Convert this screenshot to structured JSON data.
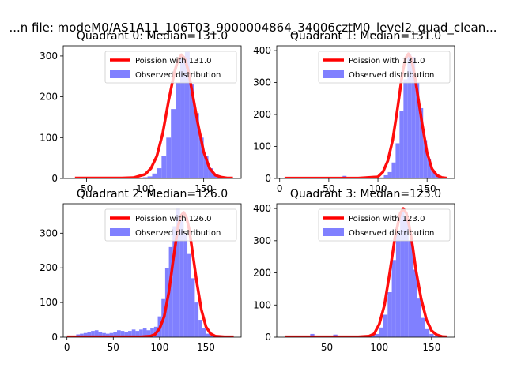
{
  "suptitle": "...n file: modeM0/AS1A11_106T03_9000004864_34006cztM0_level2_quad_clean...",
  "colors": {
    "bar": "#8080ff",
    "line": "#ff0000",
    "axis": "#000000"
  },
  "chart_data": [
    {
      "type": "histogram",
      "title": "Quadrant 0: Median=131.0",
      "xlim": [
        30,
        182
      ],
      "ylim": [
        0,
        325
      ],
      "xticks": [
        50,
        100,
        150
      ],
      "yticks": [
        0,
        100,
        200,
        300
      ],
      "bin_width": 4,
      "bins_x": [
        86,
        90,
        94,
        98,
        102,
        106,
        110,
        114,
        118,
        122,
        126,
        130,
        134,
        138,
        142,
        146,
        150,
        154,
        158,
        162,
        166,
        170
      ],
      "counts": [
        1,
        1,
        2,
        3,
        5,
        12,
        25,
        55,
        100,
        170,
        235,
        300,
        310,
        230,
        160,
        100,
        55,
        25,
        10,
        4,
        2,
        1
      ],
      "poisson_mu": 131.0,
      "poisson_x": [
        40,
        60,
        80,
        90,
        100,
        105,
        110,
        115,
        120,
        125,
        128,
        131,
        134,
        137,
        140,
        145,
        150,
        155,
        160,
        165,
        170,
        175
      ],
      "poisson_y": [
        1,
        1,
        1,
        2,
        10,
        25,
        55,
        110,
        190,
        260,
        290,
        303,
        293,
        262,
        215,
        135,
        65,
        25,
        8,
        3,
        1,
        1
      ],
      "legend": [
        "Poission with 131.0",
        "Observed distribution"
      ]
    },
    {
      "type": "histogram",
      "title": "Quadrant 1: Median=131.0",
      "xlim": [
        -3,
        178
      ],
      "ylim": [
        0,
        415
      ],
      "xticks": [
        0,
        50,
        100,
        150
      ],
      "yticks": [
        0,
        100,
        200,
        300,
        400
      ],
      "bin_width": 4,
      "bins_x": [
        64,
        88,
        102,
        106,
        110,
        114,
        118,
        122,
        126,
        130,
        134,
        138,
        142,
        146,
        150,
        154,
        158,
        162
      ],
      "counts": [
        8,
        6,
        3,
        10,
        20,
        50,
        110,
        210,
        310,
        390,
        380,
        300,
        220,
        120,
        60,
        25,
        10,
        4
      ],
      "poisson_mu": 131.0,
      "poisson_x": [
        5,
        40,
        80,
        100,
        105,
        110,
        115,
        120,
        125,
        128,
        131,
        134,
        137,
        140,
        145,
        150,
        155,
        160,
        165,
        170
      ],
      "poisson_y": [
        1,
        1,
        1,
        5,
        20,
        55,
        120,
        220,
        330,
        375,
        390,
        375,
        330,
        270,
        170,
        80,
        30,
        10,
        3,
        1
      ],
      "legend": [
        "Poission with 131.0",
        "Observed distribution"
      ]
    },
    {
      "type": "histogram",
      "title": "Quadrant 2: Median=126.0",
      "xlim": [
        -4,
        188
      ],
      "ylim": [
        0,
        385
      ],
      "xticks": [
        0,
        50,
        100,
        150
      ],
      "yticks": [
        0,
        100,
        200,
        300
      ],
      "bin_width": 4,
      "bins_x": [
        6,
        10,
        14,
        18,
        22,
        26,
        30,
        34,
        38,
        42,
        46,
        50,
        54,
        58,
        62,
        66,
        70,
        74,
        78,
        82,
        86,
        90,
        94,
        98,
        102,
        106,
        110,
        114,
        118,
        122,
        126,
        130,
        134,
        138,
        142,
        146,
        150,
        154,
        158,
        162,
        166,
        170,
        174
      ],
      "counts": [
        4,
        8,
        10,
        12,
        15,
        18,
        20,
        15,
        12,
        10,
        12,
        15,
        20,
        18,
        15,
        18,
        22,
        18,
        22,
        25,
        20,
        25,
        30,
        60,
        110,
        200,
        260,
        320,
        370,
        340,
        300,
        240,
        170,
        100,
        50,
        25,
        10,
        5,
        3,
        2,
        1,
        1,
        1
      ],
      "poisson_mu": 126.0,
      "poisson_x": [
        0,
        40,
        80,
        90,
        95,
        100,
        105,
        110,
        115,
        120,
        123,
        126,
        129,
        132,
        135,
        140,
        145,
        150,
        155,
        160,
        170,
        180
      ],
      "poisson_y": [
        1,
        1,
        1,
        3,
        8,
        25,
        60,
        130,
        230,
        320,
        350,
        360,
        345,
        310,
        255,
        160,
        80,
        30,
        10,
        3,
        1,
        1
      ],
      "legend": [
        "Poission with 126.0",
        "Observed distribution"
      ]
    },
    {
      "type": "histogram",
      "title": "Quadrant 3: Median=123.0",
      "xlim": [
        2,
        172
      ],
      "ylim": [
        0,
        415
      ],
      "xticks": [
        50,
        100,
        150
      ],
      "yticks": [
        0,
        100,
        200,
        300,
        400
      ],
      "bin_width": 4,
      "bins_x": [
        34,
        56,
        92,
        96,
        100,
        104,
        108,
        112,
        116,
        120,
        124,
        128,
        132,
        136,
        140,
        144,
        148,
        152,
        156,
        160
      ],
      "counts": [
        10,
        8,
        6,
        10,
        30,
        70,
        140,
        240,
        330,
        390,
        370,
        300,
        210,
        120,
        60,
        25,
        10,
        4,
        2,
        1
      ],
      "poisson_mu": 123.0,
      "poisson_x": [
        10,
        40,
        80,
        90,
        95,
        100,
        105,
        110,
        115,
        120,
        123,
        126,
        129,
        132,
        135,
        140,
        145,
        150,
        155,
        160,
        165
      ],
      "poisson_y": [
        1,
        1,
        1,
        3,
        10,
        40,
        100,
        200,
        310,
        385,
        400,
        385,
        340,
        280,
        210,
        120,
        55,
        20,
        7,
        2,
        1
      ],
      "legend": [
        "Poission with 123.0",
        "Observed distribution"
      ]
    }
  ]
}
